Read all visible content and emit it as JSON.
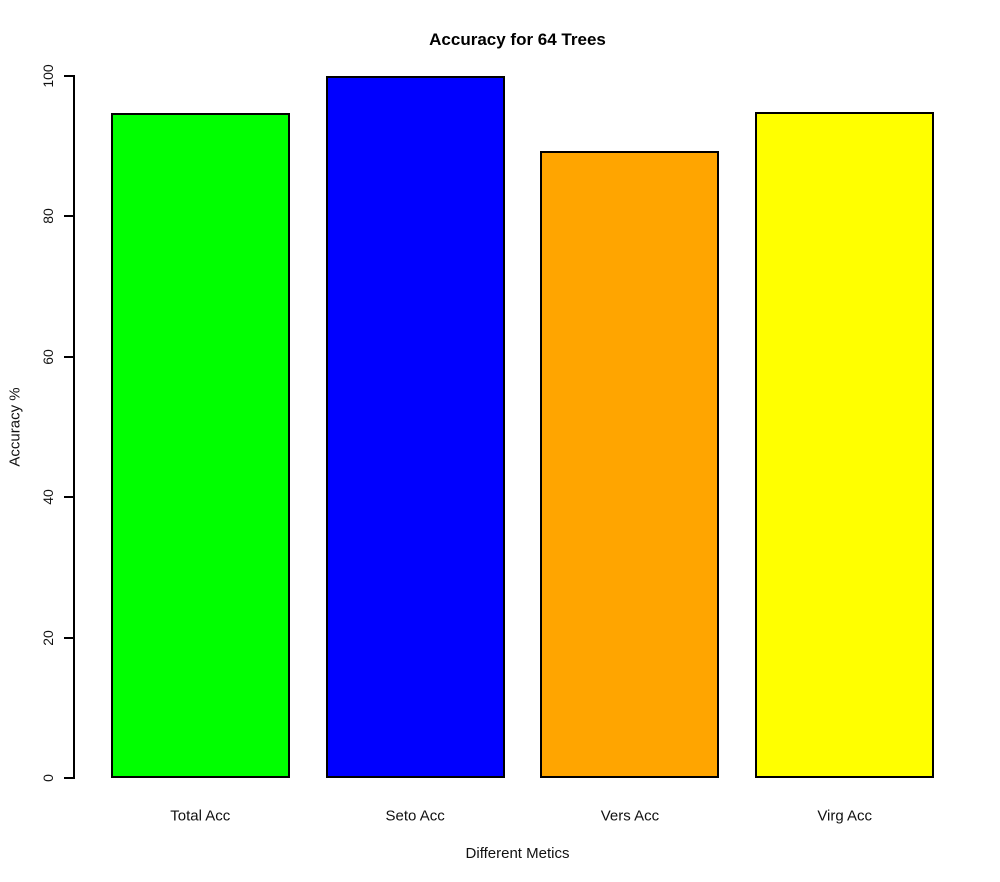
{
  "chart_data": {
    "type": "bar",
    "title": "Accuracy for 64 Trees",
    "xlabel": "Different Metics",
    "ylabel": "Accuracy %",
    "categories": [
      "Total Acc",
      "Seto Acc",
      "Vers Acc",
      "Virg Acc"
    ],
    "values": [
      94.7,
      100,
      89.3,
      94.9
    ],
    "bar_colors": [
      "#00ff00",
      "#0000ff",
      "#ffa500",
      "#ffff00"
    ],
    "bar_border_color": "#000000",
    "yticks": [
      0,
      20,
      40,
      60,
      80,
      100
    ],
    "ylim": [
      0,
      100
    ],
    "grid": false,
    "legend_position": "none",
    "background_color": "#ffffff",
    "axis_color": "#000000"
  }
}
